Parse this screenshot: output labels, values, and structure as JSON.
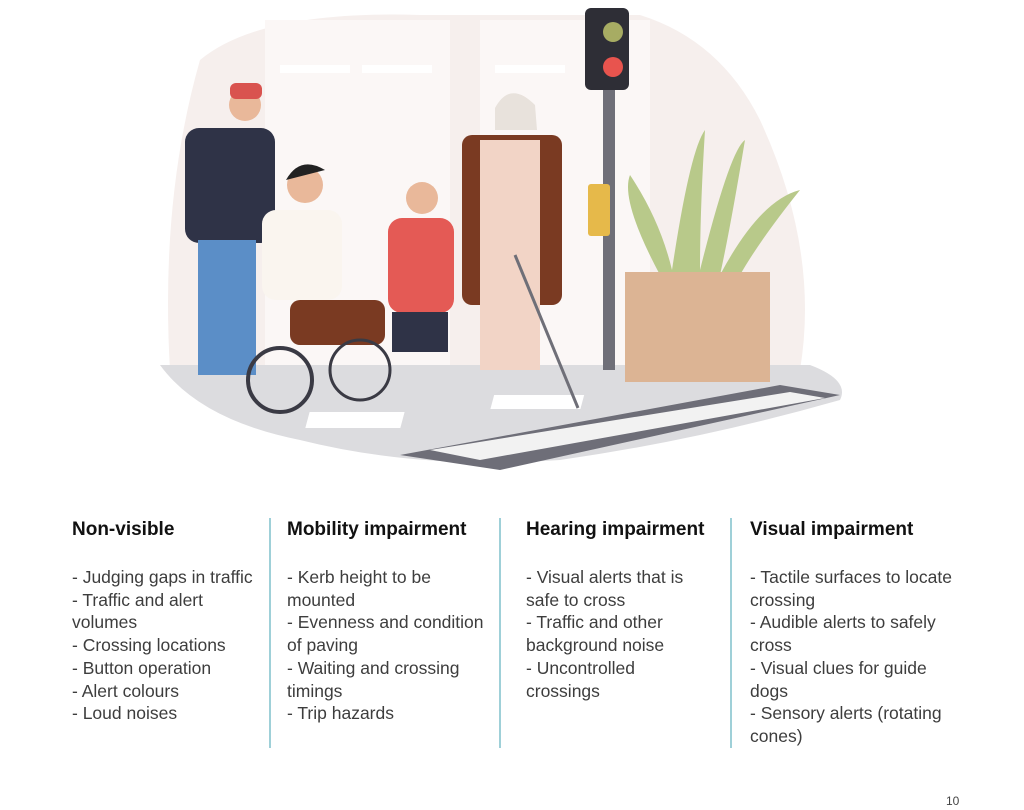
{
  "illustration": {
    "alt_colors": {
      "ground": "#d9d9dc",
      "kerb": "#6e6e78",
      "plant": "#b8c98a",
      "planter": "#dcb494"
    }
  },
  "columns": [
    {
      "heading": "Non-visible",
      "items": [
        "- Judging gaps in traffic",
        "- Traffic and alert volumes",
        "- Crossing locations",
        "- Button operation",
        "- Alert colours",
        "- Loud noises"
      ]
    },
    {
      "heading": "Mobility impairment",
      "items": [
        "- Kerb height to be mounted",
        "- Evenness and condition of paving",
        "- Waiting and crossing timings",
        "- Trip hazards"
      ]
    },
    {
      "heading": "Hearing impairment",
      "items": [
        "- Visual alerts that is safe to cross",
        "- Traffic and other background noise",
        "- Uncontrolled crossings"
      ]
    },
    {
      "heading": "Visual impairment",
      "items": [
        "- Tactile surfaces to locate crossing",
        "- Audible alerts to safely cross",
        "- Visual clues for guide dogs",
        "- Sensory alerts (rotating cones)"
      ]
    }
  ],
  "divider_color": "#9fd0d8",
  "page_number": "10"
}
